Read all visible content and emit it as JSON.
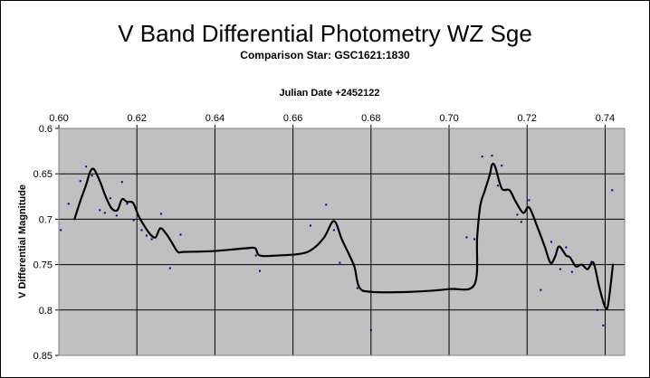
{
  "chart_data": {
    "type": "scatter",
    "title": "V Band Differential Photometry WZ Sge",
    "subtitle": "Comparison Star: GSC1621:1830",
    "xlabel": "Julian Date +2452122",
    "ylabel": "V Differential Magnitude",
    "xlim": [
      0.6,
      0.745
    ],
    "ylim": [
      0.6,
      0.85
    ],
    "y_reversed": true,
    "x_axis_position": "top",
    "xticks": [
      "0.60",
      "0.62",
      "0.64",
      "0.66",
      "0.68",
      "0.70",
      "0.72",
      "0.74"
    ],
    "yticks": [
      "0.6",
      "0.65",
      "0.7",
      "0.75",
      "0.8",
      "0.85"
    ],
    "grid": true,
    "plot_background": "#c0c0c0",
    "series": [
      {
        "kind": "points",
        "color": "#00008b",
        "points": [
          [
            0.6005,
            0.712
          ],
          [
            0.6025,
            0.683
          ],
          [
            0.6055,
            0.658
          ],
          [
            0.607,
            0.642
          ],
          [
            0.6085,
            0.652
          ],
          [
            0.6105,
            0.69
          ],
          [
            0.6118,
            0.693
          ],
          [
            0.6132,
            0.677
          ],
          [
            0.6148,
            0.696
          ],
          [
            0.6162,
            0.659
          ],
          [
            0.6175,
            0.683
          ],
          [
            0.6192,
            0.701
          ],
          [
            0.6212,
            0.712
          ],
          [
            0.6225,
            0.718
          ],
          [
            0.6238,
            0.722
          ],
          [
            0.6262,
            0.694
          ],
          [
            0.6285,
            0.754
          ],
          [
            0.6312,
            0.717
          ],
          [
            0.6505,
            0.74
          ],
          [
            0.6515,
            0.757
          ],
          [
            0.6645,
            0.707
          ],
          [
            0.6685,
            0.684
          ],
          [
            0.6705,
            0.712
          ],
          [
            0.672,
            0.748
          ],
          [
            0.6765,
            0.776
          ],
          [
            0.68,
            0.822
          ],
          [
            0.7045,
            0.72
          ],
          [
            0.7065,
            0.722
          ],
          [
            0.7085,
            0.631
          ],
          [
            0.711,
            0.63
          ],
          [
            0.7125,
            0.663
          ],
          [
            0.7135,
            0.641
          ],
          [
            0.7175,
            0.695
          ],
          [
            0.7185,
            0.703
          ],
          [
            0.7205,
            0.679
          ],
          [
            0.7235,
            0.778
          ],
          [
            0.7262,
            0.725
          ],
          [
            0.7275,
            0.737
          ],
          [
            0.7285,
            0.755
          ],
          [
            0.73,
            0.731
          ],
          [
            0.7315,
            0.758
          ],
          [
            0.7365,
            0.747
          ],
          [
            0.738,
            0.8
          ],
          [
            0.7395,
            0.817
          ],
          [
            0.7418,
            0.668
          ]
        ]
      },
      {
        "kind": "smooth-line",
        "color": "#000000",
        "points": [
          [
            0.604,
            0.7
          ],
          [
            0.6055,
            0.68
          ],
          [
            0.607,
            0.662
          ],
          [
            0.608,
            0.648
          ],
          [
            0.609,
            0.645
          ],
          [
            0.6105,
            0.658
          ],
          [
            0.612,
            0.675
          ],
          [
            0.6135,
            0.688
          ],
          [
            0.615,
            0.69
          ],
          [
            0.6162,
            0.678
          ],
          [
            0.6175,
            0.681
          ],
          [
            0.619,
            0.682
          ],
          [
            0.6205,
            0.697
          ],
          [
            0.622,
            0.708
          ],
          [
            0.6235,
            0.717
          ],
          [
            0.6248,
            0.72
          ],
          [
            0.626,
            0.71
          ],
          [
            0.6275,
            0.716
          ],
          [
            0.629,
            0.726
          ],
          [
            0.6305,
            0.736
          ],
          [
            0.632,
            0.736
          ],
          [
            0.64,
            0.735
          ],
          [
            0.648,
            0.732
          ],
          [
            0.6503,
            0.732
          ],
          [
            0.6515,
            0.74
          ],
          [
            0.656,
            0.74
          ],
          [
            0.662,
            0.738
          ],
          [
            0.665,
            0.733
          ],
          [
            0.668,
            0.72
          ],
          [
            0.6705,
            0.702
          ],
          [
            0.6725,
            0.722
          ],
          [
            0.6745,
            0.74
          ],
          [
            0.6758,
            0.753
          ],
          [
            0.677,
            0.775
          ],
          [
            0.68,
            0.78
          ],
          [
            0.69,
            0.78
          ],
          [
            0.7,
            0.777
          ],
          [
            0.7065,
            0.772
          ],
          [
            0.7072,
            0.72
          ],
          [
            0.708,
            0.685
          ],
          [
            0.7092,
            0.668
          ],
          [
            0.7105,
            0.65
          ],
          [
            0.711,
            0.64
          ],
          [
            0.7118,
            0.642
          ],
          [
            0.7135,
            0.666
          ],
          [
            0.7155,
            0.668
          ],
          [
            0.717,
            0.68
          ],
          [
            0.719,
            0.693
          ],
          [
            0.7205,
            0.687
          ],
          [
            0.7225,
            0.707
          ],
          [
            0.7245,
            0.73
          ],
          [
            0.726,
            0.748
          ],
          [
            0.7272,
            0.741
          ],
          [
            0.7282,
            0.73
          ],
          [
            0.73,
            0.74
          ],
          [
            0.731,
            0.742
          ],
          [
            0.7325,
            0.752
          ],
          [
            0.734,
            0.75
          ],
          [
            0.7355,
            0.755
          ],
          [
            0.737,
            0.748
          ],
          [
            0.7385,
            0.775
          ],
          [
            0.74,
            0.797
          ],
          [
            0.7408,
            0.793
          ],
          [
            0.742,
            0.75
          ]
        ]
      }
    ]
  }
}
